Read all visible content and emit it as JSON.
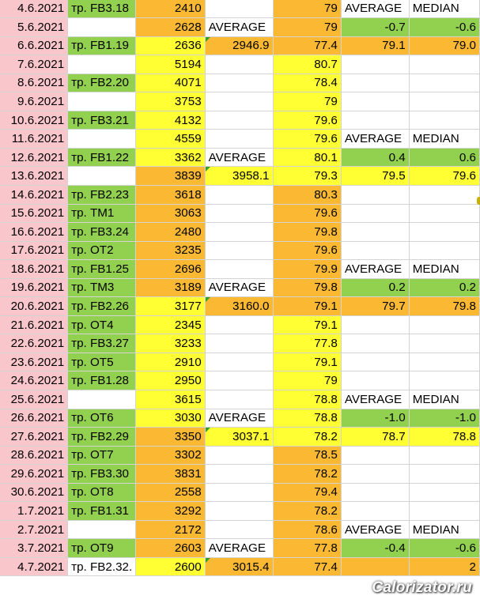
{
  "rows": [
    [
      "4.6.2021",
      "тр. FB3.18",
      "2410",
      "",
      "79",
      "AVERAGE",
      "MEDIAN"
    ],
    [
      "5.6.2021",
      "",
      "2628",
      "AVERAGE",
      "79",
      "-0.7",
      "-0.6"
    ],
    [
      "6.6.2021",
      "тр. FB1.19",
      "2636",
      "2946.9",
      "77.4",
      "79.1",
      "79.0"
    ],
    [
      "7.6.2021",
      "",
      "5194",
      "",
      "80.7",
      "",
      ""
    ],
    [
      "8.6.2021",
      "тр. FB2.20",
      "4071",
      "",
      "78.4",
      "",
      ""
    ],
    [
      "9.6.2021",
      "",
      "3753",
      "",
      "79",
      "",
      ""
    ],
    [
      "10.6.2021",
      "тр. FB3.21",
      "4132",
      "",
      "79.6",
      "",
      ""
    ],
    [
      "11.6.2021",
      "",
      "4559",
      "",
      "79.6",
      "AVERAGE",
      "MEDIAN"
    ],
    [
      "12.6.2021",
      "тр. FB1.22",
      "3362",
      "AVERAGE",
      "80.1",
      "0.4",
      "0.6"
    ],
    [
      "13.6.2021",
      "",
      "3839",
      "3958.1",
      "79.3",
      "79.5",
      "79.6"
    ],
    [
      "14.6.2021",
      "тр. FB2.23",
      "3618",
      "",
      "80.3",
      "",
      ""
    ],
    [
      "15.6.2021",
      "тр. TM1",
      "3063",
      "",
      "79.6",
      "",
      ""
    ],
    [
      "16.6.2021",
      "тр. FB3.24",
      "2480",
      "",
      "79.8",
      "",
      ""
    ],
    [
      "17.6.2021",
      "тр. OT2",
      "3235",
      "",
      "79.6",
      "",
      ""
    ],
    [
      "18.6.2021",
      "тр. FB1.25",
      "2696",
      "",
      "79.9",
      "AVERAGE",
      "MEDIAN"
    ],
    [
      "19.6.2021",
      "тр. TM3",
      "3189",
      "AVERAGE",
      "79.8",
      "0.2",
      "0.2"
    ],
    [
      "20.6.2021",
      "тр. FB2.26",
      "3177",
      "3160.0",
      "79.1",
      "79.7",
      "79.8"
    ],
    [
      "21.6.2021",
      "тр. OT4",
      "2345",
      "",
      "79.1",
      "",
      ""
    ],
    [
      "22.6.2021",
      "тр. FB3.27",
      "3233",
      "",
      "77.8",
      "",
      ""
    ],
    [
      "23.6.2021",
      "тр. OT5",
      "2910",
      "",
      "79.1",
      "",
      ""
    ],
    [
      "24.6.2021",
      "тр. FB1.28",
      "2950",
      "",
      "79",
      "",
      ""
    ],
    [
      "25.6.2021",
      "",
      "3615",
      "",
      "78.8",
      "AVERAGE",
      "MEDIAN"
    ],
    [
      "26.6.2021",
      "тр. OT6",
      "3030",
      "AVERAGE",
      "78.8",
      "-1.0",
      "-1.0"
    ],
    [
      "27.6.2021",
      "тр. FB2.29",
      "3350",
      "3037.1",
      "78.2",
      "78.7",
      "78.8"
    ],
    [
      "28.6.2021",
      "тр. OT7",
      "3302",
      "",
      "78.5",
      "",
      ""
    ],
    [
      "29.6.2021",
      "тр. FB3.30",
      "3831",
      "",
      "78.2",
      "",
      ""
    ],
    [
      "30.6.2021",
      "тр. OT8",
      "2558",
      "",
      "79.4",
      "",
      ""
    ],
    [
      "1.7.2021",
      "тр. FB1.31",
      "3292",
      "",
      "78.2",
      "",
      ""
    ],
    [
      "2.7.2021",
      "",
      "2172",
      "",
      "78.6",
      "AVERAGE",
      "MEDIAN"
    ],
    [
      "3.7.2021",
      "тр. OT9",
      "2603",
      "AVERAGE",
      "77.8",
      "-0.4",
      "-0.6"
    ],
    [
      "4.7.2021",
      "тр. FB2.32.",
      "2600",
      "3015.4",
      "77.4",
      "",
      "2"
    ]
  ],
  "colors": {
    "pink": "#f9c6cc",
    "green": "#92d050",
    "orange": "#fbb933",
    "yellow": "#ffff33",
    "white": "#ffffff"
  },
  "cell_colors": [
    [
      "pink",
      "green",
      "orange",
      "white",
      "orange",
      "white",
      "white"
    ],
    [
      "pink",
      "white",
      "orange",
      "white",
      "orange",
      "green",
      "green"
    ],
    [
      "pink",
      "green",
      "yellow",
      "orange",
      "orange",
      "orange",
      "orange"
    ],
    [
      "pink",
      "white",
      "yellow",
      "white",
      "yellow",
      "white",
      "white"
    ],
    [
      "pink",
      "green",
      "yellow",
      "white",
      "yellow",
      "white",
      "white"
    ],
    [
      "pink",
      "white",
      "yellow",
      "white",
      "yellow",
      "white",
      "white"
    ],
    [
      "pink",
      "green",
      "yellow",
      "white",
      "yellow",
      "white",
      "white"
    ],
    [
      "pink",
      "white",
      "yellow",
      "white",
      "yellow",
      "white",
      "white"
    ],
    [
      "pink",
      "green",
      "yellow",
      "white",
      "yellow",
      "green",
      "green"
    ],
    [
      "pink",
      "white",
      "orange",
      "yellow",
      "yellow",
      "yellow",
      "yellow"
    ],
    [
      "pink",
      "green",
      "orange",
      "white",
      "orange",
      "white",
      "white"
    ],
    [
      "pink",
      "green",
      "orange",
      "white",
      "orange",
      "white",
      "white"
    ],
    [
      "pink",
      "green",
      "orange",
      "white",
      "orange",
      "white",
      "white"
    ],
    [
      "pink",
      "green",
      "orange",
      "white",
      "orange",
      "white",
      "white"
    ],
    [
      "pink",
      "green",
      "orange",
      "white",
      "orange",
      "white",
      "white"
    ],
    [
      "pink",
      "green",
      "orange",
      "white",
      "orange",
      "green",
      "green"
    ],
    [
      "pink",
      "green",
      "yellow",
      "orange",
      "orange",
      "orange",
      "orange"
    ],
    [
      "pink",
      "green",
      "yellow",
      "white",
      "yellow",
      "white",
      "white"
    ],
    [
      "pink",
      "green",
      "yellow",
      "white",
      "yellow",
      "white",
      "white"
    ],
    [
      "pink",
      "green",
      "yellow",
      "white",
      "yellow",
      "white",
      "white"
    ],
    [
      "pink",
      "green",
      "yellow",
      "white",
      "yellow",
      "white",
      "white"
    ],
    [
      "pink",
      "white",
      "yellow",
      "white",
      "yellow",
      "white",
      "white"
    ],
    [
      "pink",
      "green",
      "yellow",
      "white",
      "yellow",
      "green",
      "green"
    ],
    [
      "pink",
      "green",
      "orange",
      "yellow",
      "yellow",
      "yellow",
      "yellow"
    ],
    [
      "pink",
      "green",
      "orange",
      "white",
      "orange",
      "white",
      "white"
    ],
    [
      "pink",
      "green",
      "orange",
      "white",
      "orange",
      "white",
      "white"
    ],
    [
      "pink",
      "green",
      "orange",
      "white",
      "orange",
      "white",
      "white"
    ],
    [
      "pink",
      "green",
      "orange",
      "white",
      "orange",
      "white",
      "white"
    ],
    [
      "pink",
      "white",
      "orange",
      "white",
      "orange",
      "white",
      "white"
    ],
    [
      "pink",
      "green",
      "orange",
      "white",
      "orange",
      "green",
      "green"
    ],
    [
      "pink",
      "white",
      "yellow",
      "orange",
      "orange",
      "orange",
      "orange"
    ]
  ],
  "watermark": "Calorizator.ru"
}
